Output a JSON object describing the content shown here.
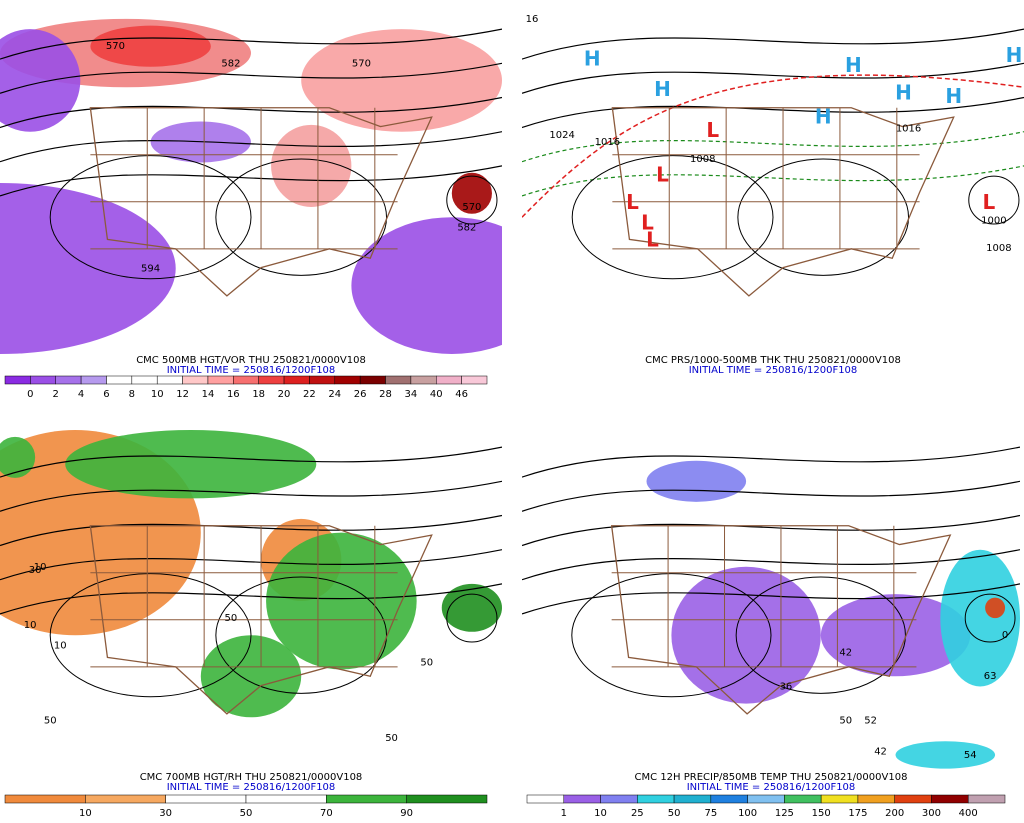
{
  "panels": [
    {
      "caption": "CMC 500MB HGT/VOR THU 250821/0000V108",
      "initial": "INITIAL TIME = 250816/1200F108",
      "colorbar": {
        "labels": [
          "0",
          "2",
          "4",
          "6",
          "8",
          "10",
          "12",
          "14",
          "16",
          "18",
          "20",
          "22",
          "24",
          "26",
          "28",
          "34",
          "40",
          "46"
        ],
        "colors": [
          "#8a2be2",
          "#9a4fe6",
          "#a672ea",
          "#b69aee",
          "#ffffff",
          "#ffffff",
          "#ffffff",
          "#ffc8c8",
          "#ffa0a0",
          "#f77070",
          "#ee4040",
          "#dd2020",
          "#c01010",
          "#a00000",
          "#7a0000",
          "#a07070",
          "#c8a0a0",
          "#f0b0c8",
          "#f8c8d8"
        ]
      },
      "map_labels": [
        "570",
        "582",
        "570",
        "582",
        "594",
        "570"
      ]
    },
    {
      "caption": "CMC PRS/1000-500MB THK THU 250821/0000V108",
      "initial": "INITIAL TIME = 250816/1200F108",
      "map_labels": [
        "16",
        "H",
        "H",
        "H",
        "H",
        "H",
        "H",
        "H",
        "L",
        "L",
        "L",
        "L",
        "L",
        "L",
        "1024",
        "1016",
        "1016",
        "1008",
        "1008",
        "1000"
      ]
    },
    {
      "caption": "CMC 700MB HGT/RH THU 250821/0000V108",
      "initial": "INITIAL TIME = 250816/1200F108",
      "colorbar": {
        "labels": [
          "10",
          "30",
          "50",
          "70",
          "90"
        ],
        "colors": [
          "#f08a3c",
          "#f6a860",
          "#ffffff",
          "#ffffff",
          "#3cb43c",
          "#1f8f1f"
        ]
      },
      "map_labels": [
        "10",
        "10",
        "10",
        "50",
        "50",
        "50",
        "50",
        "30"
      ]
    },
    {
      "caption": "CMC 12H PRECIP/850MB TEMP THU 250821/0000V108",
      "initial": "INITIAL TIME = 250816/1200F108",
      "colorbar": {
        "labels": [
          "1",
          "10",
          "25",
          "50",
          "75",
          "100",
          "125",
          "150",
          "175",
          "200",
          "300",
          "400"
        ],
        "colors": [
          "#ffffff",
          "#9a60e6",
          "#8080f0",
          "#30d0e0",
          "#20b0d0",
          "#1f80e0",
          "#80c0f0",
          "#40c060",
          "#f0e020",
          "#f0a020",
          "#e04010",
          "#900000",
          "#c0a0b0"
        ]
      },
      "map_labels": [
        "36",
        "42",
        "42",
        "50",
        "52",
        "54",
        "63",
        "0"
      ]
    }
  ]
}
